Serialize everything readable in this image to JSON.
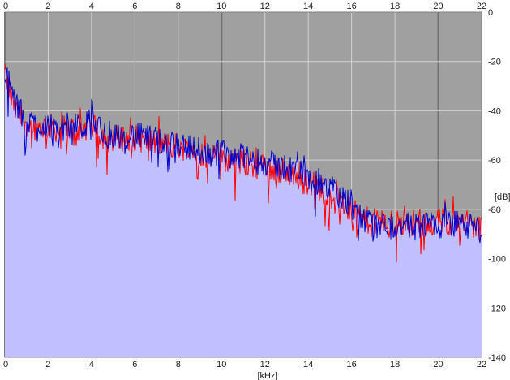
{
  "chart_data": {
    "type": "area",
    "xlabel": "[kHz]",
    "ylabel": "[dB]",
    "xlim": [
      0,
      22
    ],
    "ylim": [
      -140,
      0
    ],
    "x_ticks": [
      0,
      2,
      4,
      6,
      8,
      10,
      12,
      14,
      16,
      18,
      20,
      22
    ],
    "x_tick_labels": [
      "0",
      "2",
      "4",
      "6",
      "8",
      "10",
      "12",
      "14",
      "16",
      "18",
      "20",
      "22"
    ],
    "y_ticks": [
      0,
      -20,
      -40,
      -60,
      -80,
      -100,
      -120,
      -140
    ],
    "y_tick_labels": [
      "0",
      "-20",
      "-40",
      "-60",
      "-80",
      "-100",
      "-120",
      "-140"
    ],
    "grid": true,
    "colors": {
      "plot_background": "#a0a0a0",
      "grid": "#d2d2d2",
      "grid_major": "#707070",
      "fill": "#c0c0ff",
      "series_1": "#ff0000",
      "series_2": "#0000c8",
      "text": "#202020"
    },
    "series": [
      {
        "role": "left-channel",
        "color": "#ff0000",
        "x": [
          0,
          0.25,
          0.5,
          0.75,
          1,
          1.5,
          2,
          2.5,
          3,
          3.5,
          4,
          4.5,
          5,
          5.5,
          6,
          6.5,
          7,
          7.5,
          8,
          8.5,
          9,
          9.5,
          10,
          10.5,
          11,
          11.5,
          12,
          12.5,
          13,
          13.5,
          14,
          14.5,
          15,
          15.5,
          16,
          16.5,
          17,
          17.5,
          18,
          18.5,
          19,
          19.5,
          20,
          20.5,
          21,
          21.5,
          22
        ],
        "values": [
          -25,
          -34,
          -40,
          -43,
          -45,
          -47,
          -46,
          -48,
          -47,
          -48,
          -46,
          -50,
          -51,
          -51,
          -51,
          -52,
          -53,
          -54,
          -54,
          -56,
          -57,
          -58,
          -59,
          -60,
          -61,
          -62,
          -63,
          -64,
          -65,
          -67,
          -69,
          -71,
          -74,
          -77,
          -81,
          -84,
          -85,
          -85,
          -86,
          -86,
          -85,
          -85,
          -85,
          -85,
          -85,
          -86,
          -88
        ]
      },
      {
        "role": "right-channel",
        "color": "#0000c8",
        "x": [
          0,
          0.25,
          0.5,
          0.75,
          1,
          1.5,
          2,
          2.5,
          3,
          3.5,
          4,
          4.5,
          5,
          5.5,
          6,
          6.5,
          7,
          7.5,
          8,
          8.5,
          9,
          9.5,
          10,
          10.5,
          11,
          11.5,
          12,
          12.5,
          13,
          13.5,
          14,
          14.5,
          15,
          15.5,
          16,
          16.5,
          17,
          17.5,
          18,
          18.5,
          19,
          19.5,
          20,
          20.5,
          21,
          21.5,
          22
        ],
        "values": [
          -22,
          -30,
          -38,
          -41,
          -44,
          -46,
          -45,
          -47,
          -46,
          -47,
          -44,
          -48,
          -50,
          -50,
          -50,
          -51,
          -52,
          -53,
          -53,
          -55,
          -56,
          -57,
          -57,
          -58,
          -59,
          -60,
          -61,
          -62,
          -63,
          -64,
          -67,
          -69,
          -72,
          -75,
          -80,
          -84,
          -86,
          -86,
          -87,
          -87,
          -86,
          -86,
          -86,
          -86,
          -86,
          -87,
          -89
        ]
      }
    ]
  }
}
